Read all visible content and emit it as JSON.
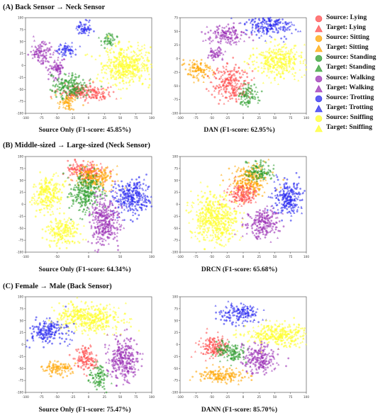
{
  "sections": [
    {
      "title": "(A) Back Sensor → Neck Sensor"
    },
    {
      "title": "(B) Middle-sized → Large-sized (Neck Sensor)"
    },
    {
      "title": "(C) Female → Male (Back Sensor)"
    }
  ],
  "legend": [
    {
      "label": "Source: Lying",
      "color": "#ff4d4d",
      "marker": "circle"
    },
    {
      "label": "Target: Lying",
      "color": "#ff4d4d",
      "marker": "triangle"
    },
    {
      "label": "Source: Sitting",
      "color": "#ffa500",
      "marker": "circle"
    },
    {
      "label": "Target: Sitting",
      "color": "#ffa500",
      "marker": "triangle"
    },
    {
      "label": "Source: Standing",
      "color": "#2e9e2e",
      "marker": "circle"
    },
    {
      "label": "Target: Standing",
      "color": "#2e9e2e",
      "marker": "triangle"
    },
    {
      "label": "Source: Walking",
      "color": "#9b30b5",
      "marker": "circle"
    },
    {
      "label": "Target: Walking",
      "color": "#9b30b5",
      "marker": "triangle"
    },
    {
      "label": "Source: Trotting",
      "color": "#2a2af0",
      "marker": "circle"
    },
    {
      "label": "Target: Trotting",
      "color": "#2a2af0",
      "marker": "triangle"
    },
    {
      "label": "Source: Sniffing",
      "color": "#ffff2a",
      "marker": "circle"
    },
    {
      "label": "Target: Sniffing",
      "color": "#ffff2a",
      "marker": "triangle"
    }
  ],
  "chart_data": [
    {
      "type": "scatter",
      "caption": "Source Only (F1-score: 45.85%)",
      "xlim": [
        -100,
        100
      ],
      "ylim": [
        -100,
        100
      ],
      "xticks": [
        -100,
        -75,
        -50,
        -25,
        0,
        25,
        50,
        75,
        100
      ],
      "yticks": [
        -100,
        -75,
        -50,
        -25,
        0,
        25,
        50,
        75,
        100
      ],
      "clusters": [
        {
          "class": "Trotting",
          "x": -8,
          "y": 78,
          "sx": 7,
          "sy": 8
        },
        {
          "class": "Trotting",
          "x": -35,
          "y": 32,
          "sx": 8,
          "sy": 7
        },
        {
          "class": "Standing",
          "x": 32,
          "y": 54,
          "sx": 6,
          "sy": 7
        },
        {
          "class": "Walking",
          "x": -75,
          "y": 27,
          "sx": 8,
          "sy": 12
        },
        {
          "class": "Walking",
          "x": -50,
          "y": -5,
          "sx": 7,
          "sy": 10
        },
        {
          "class": "Sniffing",
          "x": 58,
          "y": -2,
          "sx": 20,
          "sy": 20
        },
        {
          "class": "Lying",
          "x": -15,
          "y": -55,
          "sx": 16,
          "sy": 8
        },
        {
          "class": "Lying",
          "x": 15,
          "y": -62,
          "sx": 10,
          "sy": 6
        },
        {
          "class": "Sitting",
          "x": -35,
          "y": -75,
          "sx": 8,
          "sy": 8
        },
        {
          "class": "Standing",
          "x": -30,
          "y": -45,
          "sx": 14,
          "sy": 12
        }
      ]
    },
    {
      "type": "scatter",
      "caption": "DAN (F1-score: 62.95%)",
      "xlim": [
        -100,
        100
      ],
      "ylim": [
        -100,
        75
      ],
      "xticks": [
        -100,
        -75,
        -50,
        -25,
        0,
        25,
        50,
        75,
        100
      ],
      "yticks": [
        -100,
        -75,
        -50,
        -25,
        0,
        25,
        50,
        75
      ],
      "clusters": [
        {
          "class": "Trotting",
          "x": 42,
          "y": 62,
          "sx": 20,
          "sy": 10
        },
        {
          "class": "Walking",
          "x": -25,
          "y": 44,
          "sx": 15,
          "sy": 9
        },
        {
          "class": "Walking",
          "x": -42,
          "y": 10,
          "sx": 6,
          "sy": 8
        },
        {
          "class": "Sniffing",
          "x": 58,
          "y": -3,
          "sx": 20,
          "sy": 15
        },
        {
          "class": "Sitting",
          "x": -72,
          "y": -22,
          "sx": 10,
          "sy": 10
        },
        {
          "class": "Lying",
          "x": -20,
          "y": -45,
          "sx": 14,
          "sy": 16
        },
        {
          "class": "Standing",
          "x": 8,
          "y": -68,
          "sx": 8,
          "sy": 10
        }
      ]
    },
    {
      "type": "scatter",
      "caption": "Source Only (F1-score: 64.34%)",
      "xlim": [
        -100,
        100
      ],
      "ylim": [
        -100,
        100
      ],
      "xticks": [
        -100,
        -50,
        0,
        50,
        100
      ],
      "yticks": [
        -100,
        -75,
        -50,
        -25,
        0,
        25,
        50,
        75,
        100
      ],
      "clusters": [
        {
          "class": "Sniffing",
          "x": -65,
          "y": 20,
          "sx": 12,
          "sy": 18
        },
        {
          "class": "Sniffing",
          "x": -40,
          "y": -55,
          "sx": 13,
          "sy": 14
        },
        {
          "class": "Trotting",
          "x": 68,
          "y": 15,
          "sx": 15,
          "sy": 18
        },
        {
          "class": "Walking",
          "x": 25,
          "y": -35,
          "sx": 12,
          "sy": 25
        },
        {
          "class": "Lying",
          "x": -5,
          "y": 70,
          "sx": 15,
          "sy": 10
        },
        {
          "class": "Sitting",
          "x": 10,
          "y": 55,
          "sx": 15,
          "sy": 12
        },
        {
          "class": "Standing",
          "x": -5,
          "y": 25,
          "sx": 12,
          "sy": 20
        }
      ]
    },
    {
      "type": "scatter",
      "caption": "DRCN (F1-score: 65.68%)",
      "xlim": [
        -100,
        100
      ],
      "ylim": [
        -100,
        100
      ],
      "xticks": [
        -100,
        -75,
        -50,
        -25,
        0,
        25,
        50,
        75,
        100
      ],
      "yticks": [
        -100,
        -75,
        -50,
        -25,
        0,
        25,
        50,
        75,
        100
      ],
      "clusters": [
        {
          "class": "Sniffing",
          "x": -45,
          "y": -30,
          "sx": 18,
          "sy": 25
        },
        {
          "class": "Walking",
          "x": 30,
          "y": -40,
          "sx": 13,
          "sy": 15
        },
        {
          "class": "Trotting",
          "x": 72,
          "y": 12,
          "sx": 12,
          "sy": 18
        },
        {
          "class": "Sitting",
          "x": 10,
          "y": 50,
          "sx": 15,
          "sy": 15
        },
        {
          "class": "Standing",
          "x": 25,
          "y": 68,
          "sx": 10,
          "sy": 10
        },
        {
          "class": "Lying",
          "x": 0,
          "y": 20,
          "sx": 12,
          "sy": 12
        }
      ]
    },
    {
      "type": "scatter",
      "caption": "Source Only (F1-score: 75.47%)",
      "xlim": [
        -100,
        100
      ],
      "ylim": [
        -100,
        100
      ],
      "xticks": [
        -100,
        -75,
        -50,
        -25,
        0,
        25,
        50,
        75,
        100
      ],
      "yticks": [
        -100,
        -75,
        -50,
        -25,
        0,
        25,
        50,
        75,
        100
      ],
      "clusters": [
        {
          "class": "Sniffing",
          "x": 0,
          "y": 55,
          "sx": 25,
          "sy": 15
        },
        {
          "class": "Trotting",
          "x": -65,
          "y": 28,
          "sx": 15,
          "sy": 12
        },
        {
          "class": "Walking",
          "x": 55,
          "y": -30,
          "sx": 12,
          "sy": 22
        },
        {
          "class": "Lying",
          "x": -5,
          "y": -30,
          "sx": 10,
          "sy": 12
        },
        {
          "class": "Standing",
          "x": 15,
          "y": -65,
          "sx": 7,
          "sy": 12
        },
        {
          "class": "Sitting",
          "x": -50,
          "y": -50,
          "sx": 12,
          "sy": 8
        }
      ]
    },
    {
      "type": "scatter",
      "caption": "DANN (F1-score: 85.70%)",
      "xlim": [
        -100,
        100
      ],
      "ylim": [
        -100,
        100
      ],
      "xticks": [
        -100,
        -75,
        -50,
        -25,
        0,
        25,
        50,
        75,
        100
      ],
      "yticks": [
        -100,
        -75,
        -50,
        -25,
        0,
        25,
        50,
        75,
        100
      ],
      "clusters": [
        {
          "class": "Trotting",
          "x": -5,
          "y": 65,
          "sx": 15,
          "sy": 10
        },
        {
          "class": "Sniffing",
          "x": 55,
          "y": 20,
          "sx": 25,
          "sy": 12
        },
        {
          "class": "Walking",
          "x": 25,
          "y": -30,
          "sx": 13,
          "sy": 15
        },
        {
          "class": "Lying",
          "x": -45,
          "y": -5,
          "sx": 12,
          "sy": 12
        },
        {
          "class": "Standing",
          "x": -20,
          "y": -15,
          "sx": 12,
          "sy": 10
        },
        {
          "class": "Sitting",
          "x": -35,
          "y": -65,
          "sx": 18,
          "sy": 8
        }
      ]
    }
  ]
}
